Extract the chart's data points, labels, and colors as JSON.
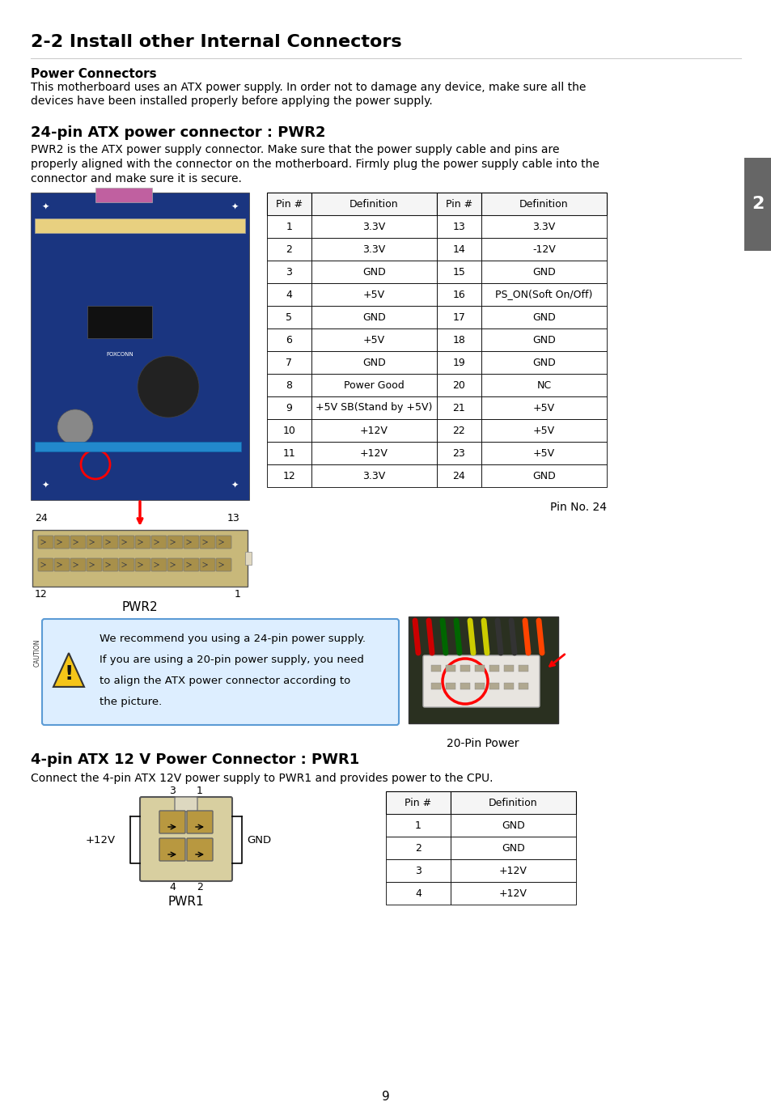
{
  "page_title": "2-2 Install other Internal Connectors",
  "section1_title": "Power Connectors",
  "section1_body": "This motherboard uses an ATX power supply. In order not to damage any device, make sure all the\ndevices have been installed properly before applying the power supply.",
  "section2_title": "24-pin ATX power connector : PWR2",
  "section2_body": "PWR2 is the ATX power supply connector. Make sure that the power supply cable and pins are\nproperly aligned with the connector on the motherboard. Firmly plug the power supply cable into the\nconnector and make sure it is secure.",
  "section3_title": "4-pin ATX 12 V Power Connector : PWR1",
  "section3_body": "Connect the 4-pin ATX 12V power supply to PWR1 and provides power to the CPU.",
  "tab1_headers": [
    "Pin #",
    "Definition",
    "Pin #",
    "Definition"
  ],
  "tab1_data": [
    [
      "1",
      "3.3V",
      "13",
      "3.3V"
    ],
    [
      "2",
      "3.3V",
      "14",
      "-12V"
    ],
    [
      "3",
      "GND",
      "15",
      "GND"
    ],
    [
      "4",
      "+5V",
      "16",
      "PS_ON(Soft On/Off)"
    ],
    [
      "5",
      "GND",
      "17",
      "GND"
    ],
    [
      "6",
      "+5V",
      "18",
      "GND"
    ],
    [
      "7",
      "GND",
      "19",
      "GND"
    ],
    [
      "8",
      "Power Good",
      "20",
      "NC"
    ],
    [
      "9",
      "+5V SB(Stand by +5V)",
      "21",
      "+5V"
    ],
    [
      "10",
      "+12V",
      "22",
      "+5V"
    ],
    [
      "11",
      "+12V",
      "23",
      "+5V"
    ],
    [
      "12",
      "3.3V",
      "24",
      "GND"
    ]
  ],
  "tab2_headers": [
    "Pin #",
    "Definition"
  ],
  "tab2_data": [
    [
      "1",
      "GND"
    ],
    [
      "2",
      "GND"
    ],
    [
      "3",
      "+12V"
    ],
    [
      "4",
      "+12V"
    ]
  ],
  "caution_text_lines": [
    "We recommend you using a 24-pin power supply.",
    "If you are using a 20-pin power supply, you need",
    "to align the ATX power connector according to",
    "the picture."
  ],
  "label_20pin": "20-Pin Power",
  "label_pwr2": "PWR2",
  "label_pwr1": "PWR1",
  "label_pin24": "Pin No. 24",
  "label_24_left": "24",
  "label_13_right": "13",
  "label_12_left": "12",
  "label_1_right": "1",
  "label_caution": "CAUTION",
  "pwr1_pin3": "3",
  "pwr1_pin1": "1",
  "pwr1_pin4": "4",
  "pwr1_pin2": "2",
  "pwr1_left_label": "+12V",
  "pwr1_right_label": "GND",
  "bg_color": "#ffffff",
  "text_color": "#000000",
  "caution_box_border": "#5b9bd5",
  "caution_box_bg": "#ddeeff",
  "sidebar_color": "#666666",
  "page_number": "9"
}
